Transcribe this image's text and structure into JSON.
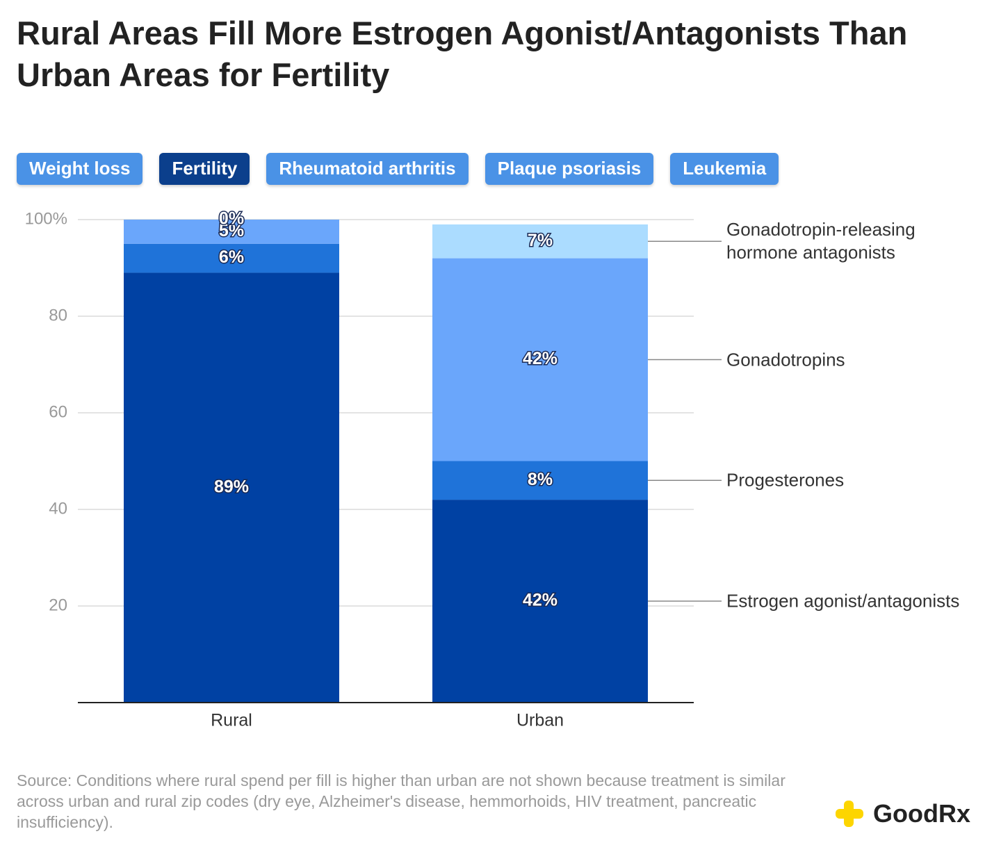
{
  "header": {
    "title": "Rural Areas Fill More Estrogen Agonist/Antagonists Than Urban Areas for Fertility"
  },
  "tabs": [
    {
      "label": "Weight loss",
      "selected": false
    },
    {
      "label": "Fertility",
      "selected": true
    },
    {
      "label": "Rheumatoid arthritis",
      "selected": false
    },
    {
      "label": "Plaque psoriasis",
      "selected": false
    },
    {
      "label": "Leukemia",
      "selected": false
    }
  ],
  "chart_data": {
    "type": "stacked_bar",
    "categories": [
      "Rural",
      "Urban"
    ],
    "series": [
      {
        "name": "Estrogen agonist/antagonists",
        "color": "#0041a3",
        "values": [
          89,
          42
        ],
        "value_labels": [
          "89%",
          "42%"
        ]
      },
      {
        "name": "Progesterones",
        "color": "#1f73d9",
        "values": [
          6,
          8
        ],
        "value_labels": [
          "6%",
          "8%"
        ]
      },
      {
        "name": "Gonadotropins",
        "color": "#6aa6fb",
        "values": [
          5,
          42
        ],
        "value_labels": [
          "5%",
          "42%"
        ]
      },
      {
        "name": "Gonadotropin-releasing hormone antagonists",
        "color": "#abdcff",
        "values": [
          0,
          7
        ],
        "value_labels": [
          "0%",
          "7%"
        ]
      }
    ],
    "ylim": [
      0,
      100
    ],
    "yticks": [
      20,
      40,
      60,
      80,
      {
        "value": 100,
        "label": "100%"
      }
    ],
    "grid": true
  },
  "footer": {
    "source": "Source: Conditions where rural spend per fill is higher than urban are not shown because treatment is similar across urban and rural zip codes (dry eye, Alzheimer's disease, hemmorhoids, HIV treatment, pancreatic insufficiency).",
    "logo": "GoodRx"
  }
}
